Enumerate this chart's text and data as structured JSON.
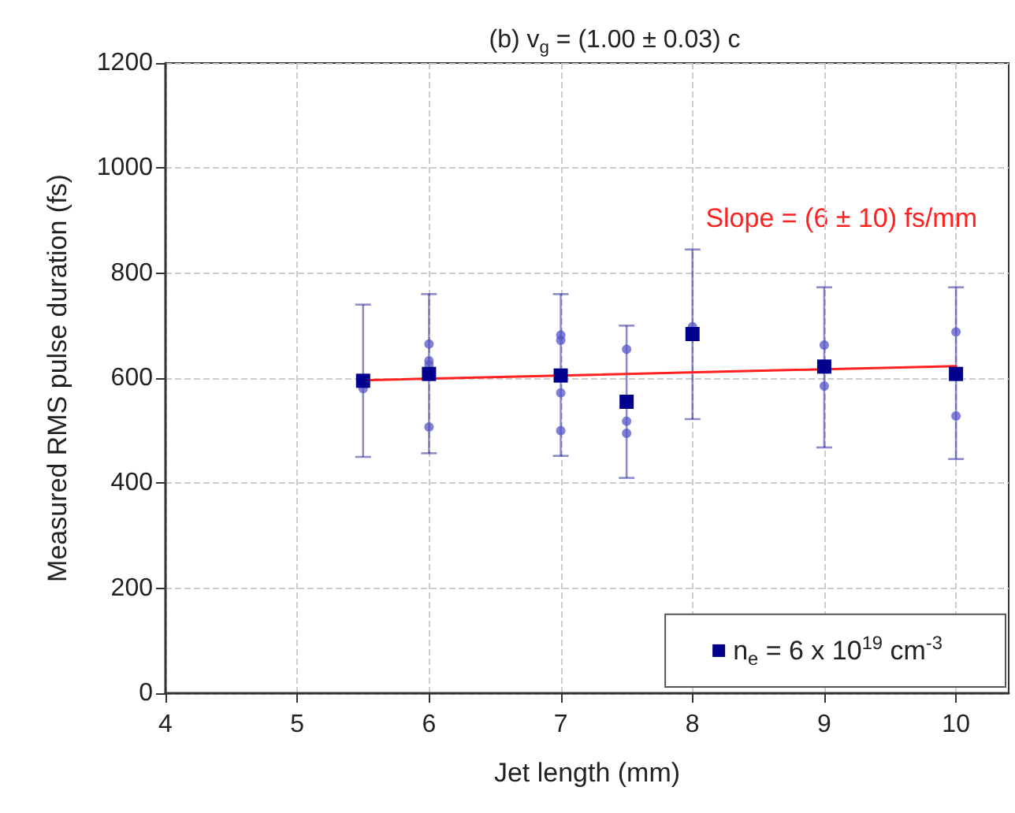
{
  "chart_data": {
    "type": "scatter",
    "title": "(b) v$_{g}$ = (1.00 ± 0.03) c",
    "xlabel": "Jet length (mm)",
    "ylabel": "Measured RMS pulse duration (fs)",
    "annotations": [
      "Slope = (6 ± 10) fs/mm"
    ],
    "xlim": [
      4,
      10.4
    ],
    "xticks": [
      4,
      5,
      6,
      7,
      8,
      9,
      10
    ],
    "ylim": [
      0,
      1200
    ],
    "yticks": [
      0,
      200,
      400,
      600,
      800,
      1000,
      1200
    ],
    "grid": true,
    "legend": "bottom right",
    "series": [
      {
        "x": [
          5.5,
          6,
          6,
          6,
          6,
          7,
          7,
          7,
          7,
          7.5,
          7.5,
          7.5,
          8,
          9,
          9,
          10,
          10
        ],
        "values": [
          580,
          665,
          633,
          625,
          507,
          682,
          672,
          572,
          500,
          655,
          518,
          495,
          698,
          663,
          585,
          688,
          528
        ],
        "color": "#5555c8",
        "marker": "circle"
      },
      {
        "name": "n$_{e}$ = 6 x 10$^{19}$ cm$^{-3}$",
        "color": "#00008c",
        "marker": "square",
        "x": [
          5.5,
          6,
          7,
          7.5,
          8,
          9,
          10
        ],
        "values": [
          595,
          608,
          605,
          555,
          684,
          622,
          608
        ],
        "errors": [
          [
            450,
            740
          ],
          [
            457,
            760
          ],
          [
            452,
            760
          ],
          [
            410,
            700
          ],
          [
            522,
            845
          ],
          [
            468,
            773
          ],
          [
            446,
            773
          ]
        ]
      },
      {
        "type": "line",
        "color": "#ff2020",
        "marker": "none",
        "x": [
          5.5,
          10
        ],
        "values": [
          596,
          623
        ]
      }
    ]
  }
}
